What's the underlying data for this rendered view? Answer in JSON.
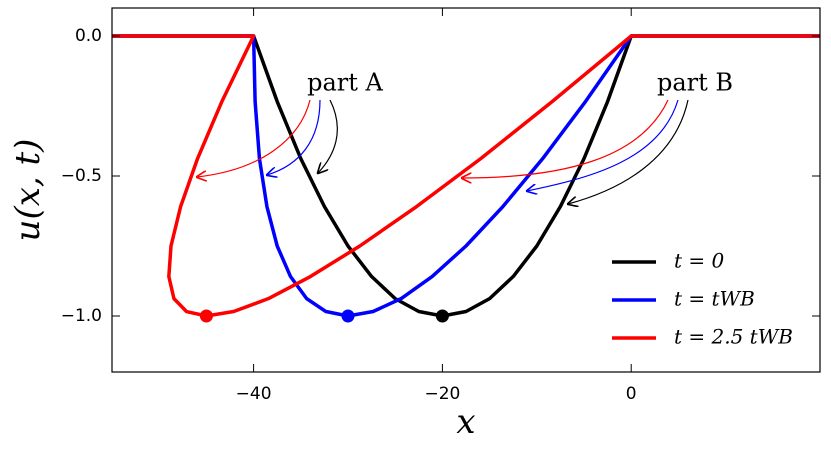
{
  "chart_data": {
    "type": "line",
    "xlabel": "x",
    "ylabel": "u(x, t)",
    "xlim": [
      -55,
      20
    ],
    "ylim": [
      -1.2,
      0.1
    ],
    "xticks": [
      {
        "value": -40,
        "label": "−40"
      },
      {
        "value": -20,
        "label": "−20"
      },
      {
        "value": 0,
        "label": "0"
      }
    ],
    "yticks": [
      {
        "value": 0,
        "label": "0.0"
      },
      {
        "value": -0.5,
        "label": "−0.5"
      },
      {
        "value": -1,
        "label": "−1.0"
      }
    ],
    "legend": "lower right",
    "annotations": [
      "part A",
      "part B"
    ],
    "series": [
      {
        "name": "t = 0",
        "color": "#000000",
        "x": [
          -55,
          -40,
          -37.5,
          -35,
          -32.5,
          -30,
          -27.5,
          -25,
          -22.5,
          -20,
          -17.5,
          -15,
          -12.5,
          -10,
          -7.5,
          -5,
          -2.5,
          0,
          20
        ],
        "values": [
          0,
          0,
          -0.234,
          -0.438,
          -0.609,
          -0.75,
          -0.859,
          -0.938,
          -0.984,
          -1,
          -0.984,
          -0.938,
          -0.859,
          -0.75,
          -0.609,
          -0.438,
          -0.234,
          0,
          0
        ]
      },
      {
        "name": "t = tWB",
        "color": "#0000ff",
        "x": [
          -55,
          -40,
          -39.84,
          -39.38,
          -38.59,
          -37.5,
          -36.09,
          -34.38,
          -32.34,
          -30,
          -27.34,
          -24.38,
          -21.09,
          -17.5,
          -13.59,
          -9.38,
          -4.84,
          0,
          20
        ],
        "values": [
          0,
          0,
          -0.234,
          -0.438,
          -0.609,
          -0.75,
          -0.859,
          -0.938,
          -0.984,
          -1,
          -0.984,
          -0.938,
          -0.859,
          -0.75,
          -0.609,
          -0.438,
          -0.234,
          0,
          0
        ]
      },
      {
        "name": "t = 2.5 tWB",
        "color": "#ff0000",
        "x": [
          -55,
          -40,
          -43.36,
          -45.94,
          -47.73,
          -48.75,
          -48.98,
          -48.44,
          -47.11,
          -45,
          -42.11,
          -38.44,
          -33.98,
          -28.75,
          -22.73,
          -15.94,
          -8.36,
          0,
          20
        ],
        "values": [
          0,
          0,
          -0.234,
          -0.438,
          -0.609,
          -0.75,
          -0.859,
          -0.938,
          -0.984,
          -1,
          -0.984,
          -0.938,
          -0.859,
          -0.75,
          -0.609,
          -0.438,
          -0.234,
          0,
          0
        ]
      }
    ]
  }
}
